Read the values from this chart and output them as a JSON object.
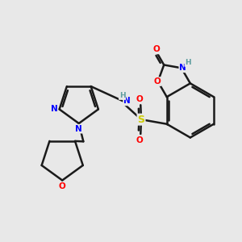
{
  "background_color": "#e8e8e8",
  "atom_colors": {
    "N": "#0000ff",
    "O": "#ff0000",
    "S": "#cccc00",
    "H": "#5f9ea0",
    "C": "#1a1a1a"
  },
  "bond_color": "#1a1a1a",
  "bond_width": 1.8,
  "fig_width": 3.0,
  "fig_height": 3.0
}
